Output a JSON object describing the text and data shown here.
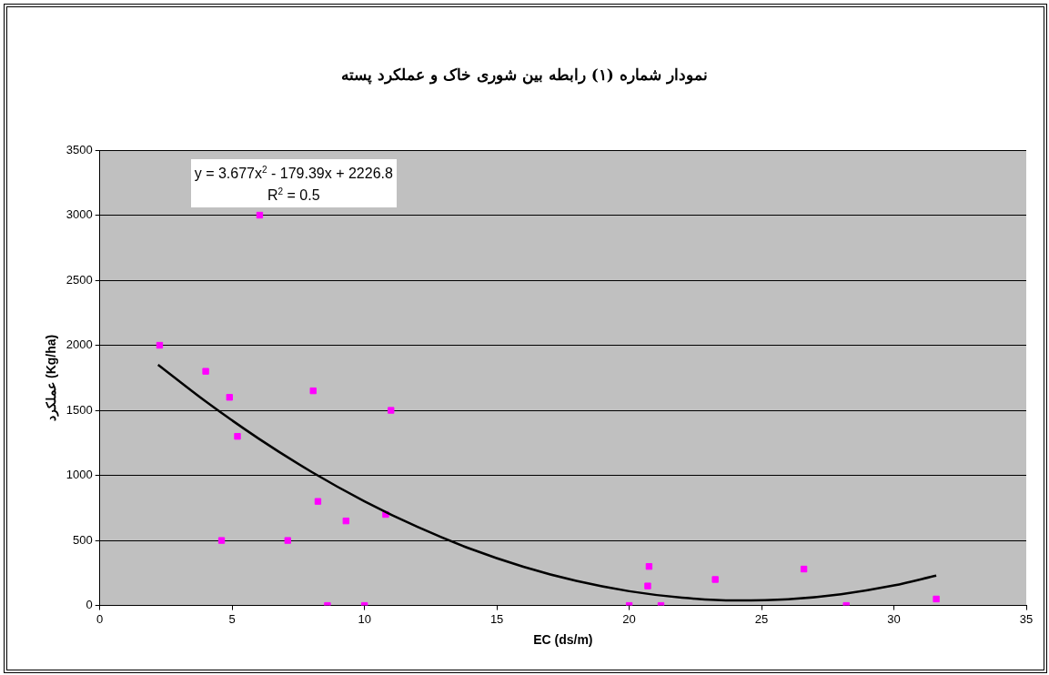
{
  "chart_data": {
    "type": "scatter",
    "title": "نمودار شماره (۱) رابطه بین شوری خاک و عملکرد پسته",
    "xlabel": "EC (ds/m)",
    "ylabel": "عملکرد (Kg/ha)",
    "annotations": [
      "y = 3.677x$^{2}$ - 179.39x + 2226.8",
      "R$^{2}$ = 0.5"
    ],
    "series": [
      {
        "color": "#ff00ff",
        "marker": "square",
        "x": [
          2.26,
          4.0,
          4.9,
          5.2,
          4.6,
          6.04,
          8.06,
          8.24,
          7.1,
          8.6,
          9.3,
          10.0,
          10.8,
          11.0,
          20.0,
          20.75,
          20.7,
          21.2,
          23.25,
          26.6,
          28.2,
          31.6
        ],
        "values": [
          2000,
          1800,
          1600,
          1300,
          500,
          3000,
          1650,
          800,
          500,
          0,
          650,
          0,
          700,
          1500,
          0,
          300,
          150,
          0,
          200,
          280,
          0,
          50
        ]
      },
      {
        "type": "line",
        "color": "#000000",
        "marker": "none",
        "line_style": "solid",
        "x": [
          2.2,
          4,
          6,
          8,
          10,
          12,
          14,
          16,
          18,
          20,
          22,
          24,
          26,
          28,
          30,
          31.6
        ],
        "values": [
          1850,
          1568,
          1283,
          1027,
          801,
          604,
          436,
          298,
          189,
          110,
          60,
          39,
          48,
          87,
          154,
          230
        ]
      }
    ],
    "xlim": [
      0,
      35
    ],
    "xticks": [
      0,
      5,
      10,
      15,
      20,
      25,
      30,
      35
    ],
    "ylim": [
      0,
      3500
    ],
    "yticks": [
      0,
      500,
      1000,
      1500,
      2000,
      2500,
      3000,
      3500
    ],
    "grid": "y",
    "legend": false
  }
}
